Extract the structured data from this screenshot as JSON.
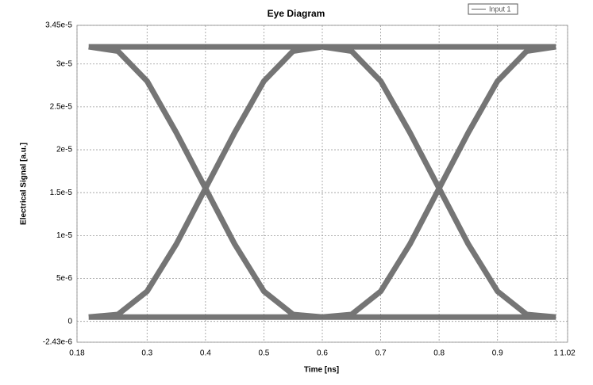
{
  "chart_data": {
    "type": "line",
    "title": "Eye Diagram",
    "xlabel": "Time [ns]",
    "ylabel": "Electrical Signal [a.u.]",
    "x": [
      0.2,
      0.6,
      null,
      0.2,
      0.6,
      null,
      0.2,
      0.25,
      0.3,
      0.35,
      0.4,
      0.45,
      0.5,
      0.55,
      0.6,
      null,
      0.2,
      0.25,
      0.3,
      0.35,
      0.4,
      0.45,
      0.5,
      0.55,
      0.6,
      null,
      0.6,
      1.0,
      null,
      0.6,
      1.0,
      null,
      0.6,
      0.65,
      0.7,
      0.75,
      0.8,
      0.85,
      0.9,
      0.95,
      1.0,
      null,
      0.6,
      0.65,
      0.7,
      0.75,
      0.8,
      0.85,
      0.9,
      0.95,
      1.0
    ],
    "series": [
      {
        "name": "Input 1",
        "color": "#666666",
        "values": [
          3.2e-05,
          3.2e-05,
          null,
          5e-07,
          5e-07,
          null,
          3.2e-05,
          3.15e-05,
          2.8e-05,
          2.2e-05,
          1.55e-05,
          9e-06,
          3.5e-06,
          8e-07,
          5e-07,
          null,
          5e-07,
          8e-07,
          3.5e-06,
          9e-06,
          1.55e-05,
          2.2e-05,
          2.8e-05,
          3.15e-05,
          3.2e-05,
          null,
          3.2e-05,
          3.2e-05,
          null,
          5e-07,
          5e-07,
          null,
          3.2e-05,
          3.15e-05,
          2.8e-05,
          2.2e-05,
          1.55e-05,
          9e-06,
          3.5e-06,
          8e-07,
          5e-07,
          null,
          5e-07,
          8e-07,
          3.5e-06,
          9e-06,
          1.55e-05,
          2.2e-05,
          2.8e-05,
          3.15e-05,
          3.2e-05
        ]
      }
    ],
    "xlim": [
      0.18,
      1.02
    ],
    "xticks": [
      0.18,
      0.3,
      0.4,
      0.5,
      0.6,
      0.7,
      0.8,
      0.9,
      1,
      1.02
    ],
    "ylim": [
      -2.43e-06,
      3.45e-05
    ],
    "yticks": [
      {
        "value": -2.43e-06,
        "label": "-2.43e-6"
      },
      0,
      {
        "value": 5e-06,
        "label": "5e-6"
      },
      {
        "value": 1e-05,
        "label": "1e-5"
      },
      {
        "value": 1.5e-05,
        "label": "1.5e-5"
      },
      {
        "value": 2e-05,
        "label": "2e-5"
      },
      {
        "value": 2.5e-05,
        "label": "2.5e-5"
      },
      {
        "value": 3e-05,
        "label": "3e-5"
      },
      {
        "value": 3.45e-05,
        "label": "3.45e-5"
      }
    ],
    "grid": true,
    "legend": "top-right"
  }
}
